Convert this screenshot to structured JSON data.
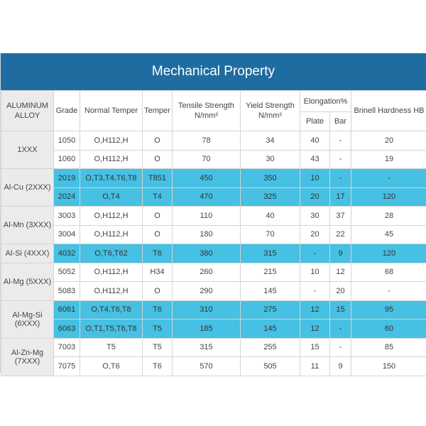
{
  "title": "Mechanical Property",
  "headers": {
    "alloy": "ALUMINUM ALLOY",
    "grade": "Grade",
    "normal_temper": "Normal Temper",
    "temper": "Temper",
    "tensile": "Tensile Strength N/mm²",
    "yield": "Yield Strength N/mm²",
    "elongation": "Elongation%",
    "plate": "Plate",
    "bar": "Bar",
    "brinell": "Brinell Hardness HB"
  },
  "groups": [
    {
      "name": "1XXX",
      "rows": [
        {
          "grade": "1050",
          "normal_temper": "O,H112,H",
          "temper": "O",
          "tensile": "78",
          "yield": "34",
          "plate": "40",
          "bar": "-",
          "hb": "20",
          "highlight": false
        },
        {
          "grade": "1060",
          "normal_temper": "O,H112,H",
          "temper": "O",
          "tensile": "70",
          "yield": "30",
          "plate": "43",
          "bar": "-",
          "hb": "19",
          "highlight": false
        }
      ]
    },
    {
      "name": "Al-Cu (2XXX)",
      "rows": [
        {
          "grade": "2019",
          "normal_temper": "O,T3,T4,T6,T8",
          "temper": "T851",
          "tensile": "450",
          "yield": "350",
          "plate": "10",
          "bar": "-",
          "hb": "-",
          "highlight": true
        },
        {
          "grade": "2024",
          "normal_temper": "O,T4",
          "temper": "T4",
          "tensile": "470",
          "yield": "325",
          "plate": "20",
          "bar": "17",
          "hb": "120",
          "highlight": true
        }
      ]
    },
    {
      "name": "Al-Mn (3XXX)",
      "rows": [
        {
          "grade": "3003",
          "normal_temper": "O,H112,H",
          "temper": "O",
          "tensile": "110",
          "yield": "40",
          "plate": "30",
          "bar": "37",
          "hb": "28",
          "highlight": false
        },
        {
          "grade": "3004",
          "normal_temper": "O,H112,H",
          "temper": "O",
          "tensile": "180",
          "yield": "70",
          "plate": "20",
          "bar": "22",
          "hb": "45",
          "highlight": false
        }
      ]
    },
    {
      "name": "Al-Si (4XXX)",
      "rows": [
        {
          "grade": "4032",
          "normal_temper": "O,T6,T62",
          "temper": "T6",
          "tensile": "380",
          "yield": "315",
          "plate": "-",
          "bar": "9",
          "hb": "120",
          "highlight": true
        }
      ]
    },
    {
      "name": "Al-Mg (5XXX)",
      "rows": [
        {
          "grade": "5052",
          "normal_temper": "O,H112,H",
          "temper": "H34",
          "tensile": "260",
          "yield": "215",
          "plate": "10",
          "bar": "12",
          "hb": "68",
          "highlight": false
        },
        {
          "grade": "5083",
          "normal_temper": "O,H112,H",
          "temper": "O",
          "tensile": "290",
          "yield": "145",
          "plate": "-",
          "bar": "20",
          "hb": "-",
          "highlight": false
        }
      ]
    },
    {
      "name": "Al-Mg-Si (6XXX)",
      "rows": [
        {
          "grade": "6061",
          "normal_temper": "O,T4,T6,T8",
          "temper": "T6",
          "tensile": "310",
          "yield": "275",
          "plate": "12",
          "bar": "15",
          "hb": "95",
          "highlight": true
        },
        {
          "grade": "6063",
          "normal_temper": "O,T1,T5,T6,T8",
          "temper": "T5",
          "tensile": "185",
          "yield": "145",
          "plate": "12",
          "bar": "-",
          "hb": "60",
          "highlight": true
        }
      ]
    },
    {
      "name": "Al-Zn-Mg (7XXX)",
      "rows": [
        {
          "grade": "7003",
          "normal_temper": "T5",
          "temper": "T5",
          "tensile": "315",
          "yield": "255",
          "plate": "15",
          "bar": "-",
          "hb": "85",
          "highlight": false
        },
        {
          "grade": "7075",
          "normal_temper": "O,T6",
          "temper": "T6",
          "tensile": "570",
          "yield": "505",
          "plate": "11",
          "bar": "9",
          "hb": "150",
          "highlight": false
        }
      ]
    }
  ],
  "colors": {
    "title_bg": "#1f6da0",
    "highlight": "#46c0e3",
    "group_bg": "#ebebeb"
  }
}
